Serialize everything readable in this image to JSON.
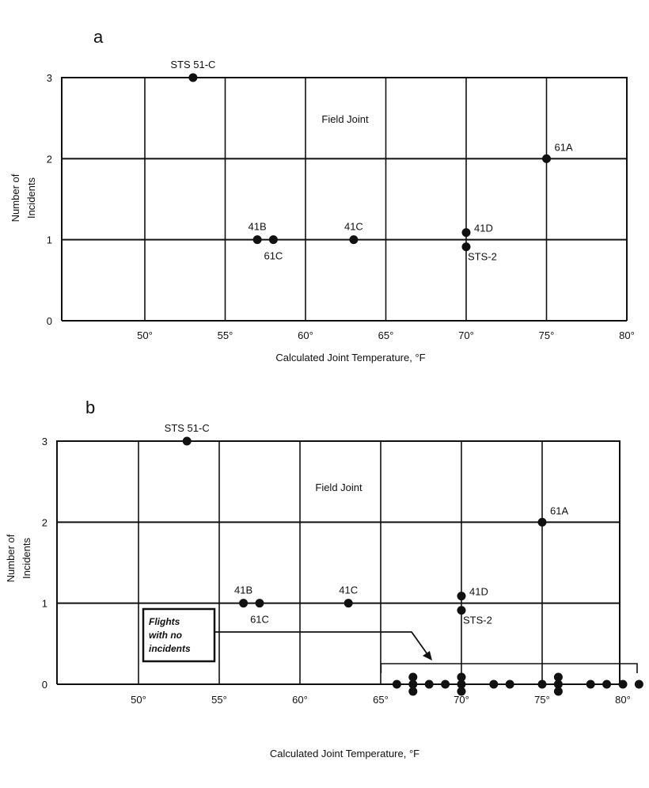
{
  "chart_data": [
    {
      "type": "scatter",
      "panel_label": "a",
      "annotation": "Field Joint",
      "xlabel": "Calculated Joint Temperature, °F",
      "ylabel": [
        "Number of",
        "Incidents"
      ],
      "xlim": [
        45,
        80
      ],
      "ylim": [
        0,
        3
      ],
      "x_ticks": [
        50,
        55,
        60,
        65,
        70,
        75,
        80
      ],
      "x_tick_labels": [
        "50°",
        "55°",
        "60°",
        "65°",
        "70°",
        "75°",
        "80°"
      ],
      "y_ticks": [
        0,
        1,
        2,
        3
      ],
      "y_tick_labels": [
        "0",
        "1",
        "2",
        "3"
      ],
      "grid": true,
      "points": [
        {
          "x": 53,
          "y": 3,
          "label": "STS 51-C",
          "label_pos": "above"
        },
        {
          "x": 75,
          "y": 2,
          "label": "61A",
          "label_pos": "above-right"
        },
        {
          "x": 57,
          "y": 1,
          "label": "41B",
          "label_pos": "above"
        },
        {
          "x": 58,
          "y": 1,
          "label": "61C",
          "label_pos": "below"
        },
        {
          "x": 63,
          "y": 1,
          "label": "41C",
          "label_pos": "above"
        },
        {
          "x": 70,
          "y": 1,
          "label": "41D",
          "label_pos": "above-right",
          "offset": -1
        },
        {
          "x": 70,
          "y": 1,
          "label": "STS-2",
          "label_pos": "below-right",
          "offset": 1
        }
      ]
    },
    {
      "type": "scatter",
      "panel_label": "b",
      "annotation": "Field Joint",
      "callout": [
        "Flights",
        "with no",
        "incidents"
      ],
      "xlabel": "Calculated Joint Temperature, °F",
      "ylabel": [
        "Number of",
        "Incidents"
      ],
      "xlim": [
        45,
        80
      ],
      "ylim": [
        0,
        3
      ],
      "x_ticks": [
        50,
        55,
        60,
        65,
        70,
        75,
        80
      ],
      "x_tick_labels": [
        "50°",
        "55°",
        "60°",
        "65°",
        "70°",
        "75°",
        "80°"
      ],
      "y_ticks": [
        0,
        1,
        2,
        3
      ],
      "y_tick_labels": [
        "0",
        "1",
        "2",
        "3"
      ],
      "grid": true,
      "points": [
        {
          "x": 53,
          "y": 3,
          "label": "STS 51-C",
          "label_pos": "above"
        },
        {
          "x": 75,
          "y": 2,
          "label": "61A",
          "label_pos": "above-right"
        },
        {
          "x": 56.5,
          "y": 1,
          "label": "41B",
          "label_pos": "above"
        },
        {
          "x": 57.5,
          "y": 1,
          "label": "61C",
          "label_pos": "below"
        },
        {
          "x": 63,
          "y": 1,
          "label": "41C",
          "label_pos": "above"
        },
        {
          "x": 70,
          "y": 1,
          "label": "41D",
          "label_pos": "above-right",
          "offset": -1
        },
        {
          "x": 70,
          "y": 1,
          "label": "STS-2",
          "label_pos": "below-right",
          "offset": 1
        },
        {
          "x": 66,
          "y": 0
        },
        {
          "x": 67,
          "y": 0,
          "offset": -1
        },
        {
          "x": 67,
          "y": 0
        },
        {
          "x": 67,
          "y": 0,
          "offset": 1
        },
        {
          "x": 68,
          "y": 0
        },
        {
          "x": 69,
          "y": 0
        },
        {
          "x": 70,
          "y": 0,
          "offset": -1
        },
        {
          "x": 70,
          "y": 0
        },
        {
          "x": 70,
          "y": 0,
          "offset": 1
        },
        {
          "x": 72,
          "y": 0
        },
        {
          "x": 73,
          "y": 0
        },
        {
          "x": 75,
          "y": 0
        },
        {
          "x": 76,
          "y": 0,
          "offset": -1
        },
        {
          "x": 76,
          "y": 0
        },
        {
          "x": 76,
          "y": 0,
          "offset": 1
        },
        {
          "x": 78,
          "y": 0
        },
        {
          "x": 79,
          "y": 0
        },
        {
          "x": 80,
          "y": 0
        },
        {
          "x": 81,
          "y": 0
        }
      ],
      "no_incident_range": [
        66,
        81
      ]
    }
  ]
}
